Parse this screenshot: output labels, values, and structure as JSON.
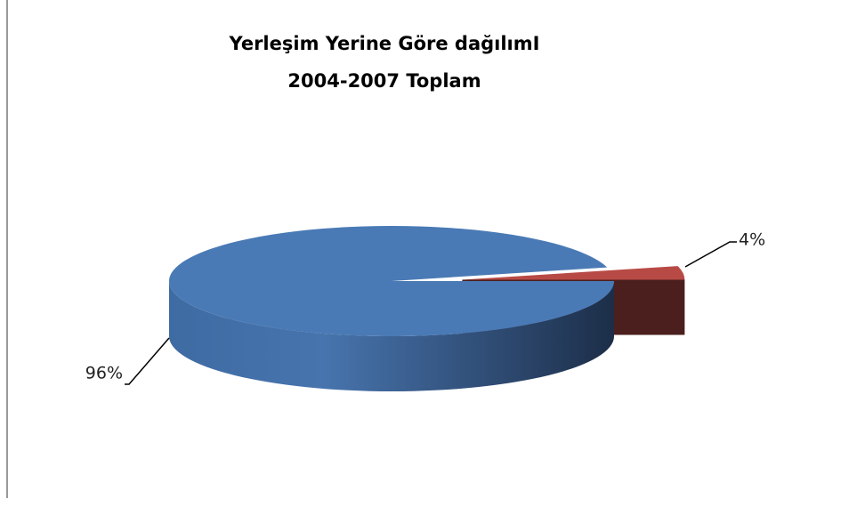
{
  "chart_data": {
    "type": "pie3d",
    "title": [
      "Yerleşim Yerine Göre dağılımI",
      "2004-2007 Toplam"
    ],
    "series": [
      {
        "values": [
          96,
          4
        ],
        "value_labels": [
          "96%",
          "4%"
        ],
        "colors": [
          "#4a7ab5",
          "#b84a45"
        ]
      }
    ]
  }
}
